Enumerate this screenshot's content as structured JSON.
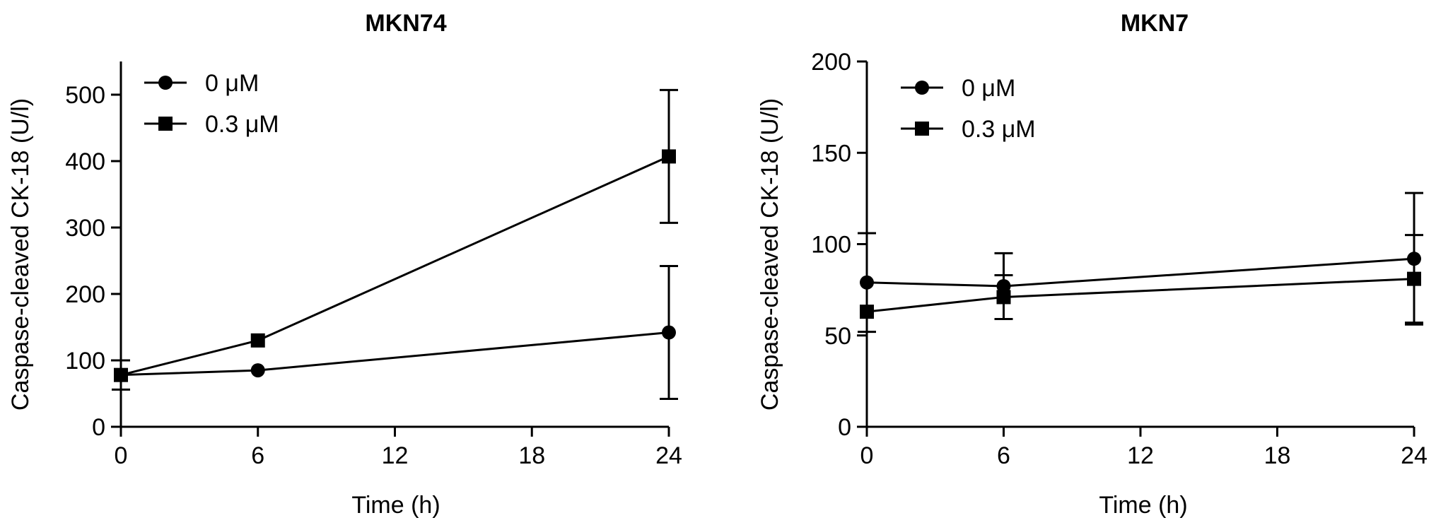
{
  "chart_data": [
    {
      "type": "line",
      "title": "MKN74",
      "xlabel": "Time (h)",
      "ylabel": "Caspase-cleaved CK-18 (U/l)",
      "xlim": [
        0,
        24
      ],
      "ylim": [
        0,
        550
      ],
      "xticks": [
        0,
        6,
        12,
        18,
        24
      ],
      "yticks": [
        0,
        100,
        200,
        300,
        400,
        500
      ],
      "legend_position": "top-left",
      "grid": false,
      "series": [
        {
          "name": "0 μM",
          "marker": "circle",
          "x": [
            0,
            6,
            24
          ],
          "y": [
            78,
            85,
            142
          ],
          "err": [
            22,
            0,
            100
          ]
        },
        {
          "name": "0.3 μM",
          "marker": "square",
          "x": [
            0,
            6,
            24
          ],
          "y": [
            78,
            130,
            407
          ],
          "err": [
            0,
            0,
            100
          ]
        }
      ]
    },
    {
      "type": "line",
      "title": "MKN7",
      "xlabel": "Time (h)",
      "ylabel": "Caspase-cleaved CK-18 (U/l)",
      "xlim": [
        0,
        24
      ],
      "ylim": [
        0,
        200
      ],
      "xticks": [
        0,
        6,
        12,
        18,
        24
      ],
      "yticks": [
        0,
        50,
        100,
        150,
        200
      ],
      "legend_position": "top-left",
      "grid": false,
      "series": [
        {
          "name": "0 μM",
          "marker": "circle",
          "x": [
            0,
            6,
            24
          ],
          "y": [
            79,
            77,
            92
          ],
          "err": [
            27,
            18,
            36
          ]
        },
        {
          "name": "0.3 μM",
          "marker": "square",
          "x": [
            0,
            6,
            24
          ],
          "y": [
            63,
            71,
            81
          ],
          "err": [
            0,
            12,
            24
          ]
        }
      ]
    }
  ]
}
